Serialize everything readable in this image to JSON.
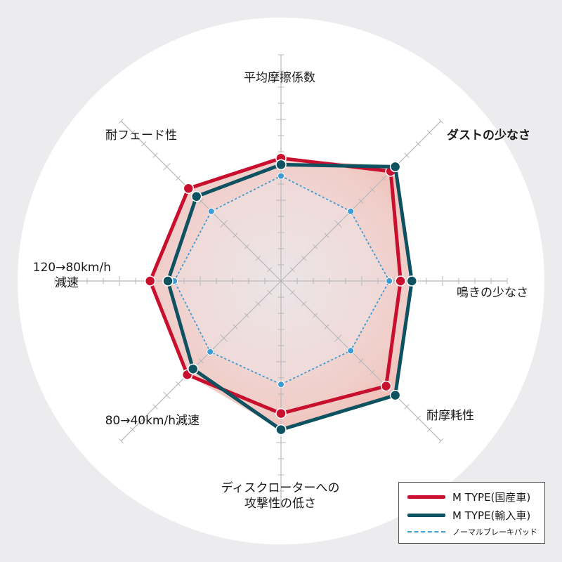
{
  "chart_data": {
    "type": "radar",
    "axes": [
      "平均摩擦係数",
      "ダストの少なさ",
      "鳴きの少なさ",
      "耐摩耗性",
      "ディスクローターへの\n攻撃性の低さ",
      "80→40km/h減速",
      "120→80km/h\n減速",
      "耐フェード性"
    ],
    "scale_ticks": 10,
    "rmax": 10,
    "grid": true,
    "legend_position": "bottom-right",
    "series": [
      {
        "name": "M TYPE(国産車)",
        "color": "#c8102e",
        "style": "solid",
        "values": [
          7.6,
          9.6,
          7.4,
          9.2,
          8.2,
          8.2,
          8.1,
          8.1
        ]
      },
      {
        "name": "M TYPE(輸入車)",
        "color": "#0e5160",
        "style": "solid",
        "values": [
          7.2,
          10.0,
          8.1,
          10.0,
          9.2,
          7.7,
          7.0,
          7.4
        ]
      },
      {
        "name": "ノーマルブレーキパッド",
        "color": "#3a9bd5",
        "style": "dashed",
        "values": [
          6.5,
          6.1,
          6.7,
          6.1,
          6.4,
          6.2,
          6.6,
          6.1
        ]
      }
    ]
  },
  "legend": {
    "item_1": "M TYPE(国産車)",
    "item_2": "M TYPE(輸入車)",
    "item_3": "ノーマルブレーキパッド"
  }
}
